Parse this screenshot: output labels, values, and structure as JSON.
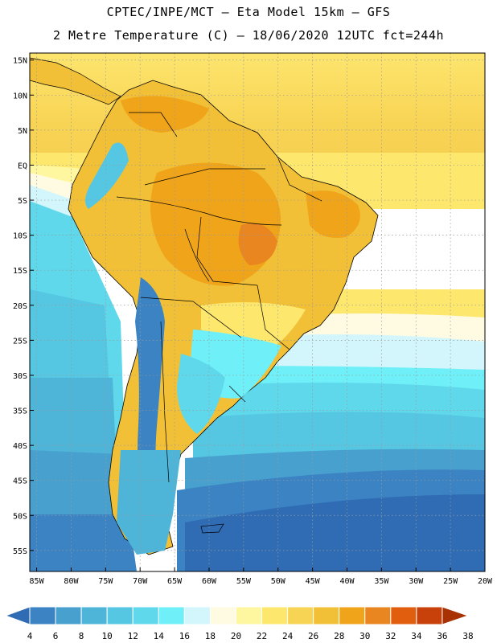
{
  "header": {
    "line1": "CPTEC/INPE/MCT –  Eta Model 15km – GFS",
    "line2": "2 Metre Temperature (C) – 18/06/2020 12UTC fct=244h"
  },
  "map": {
    "lat_labels": [
      "15N",
      "10N",
      "5N",
      "EQ",
      "5S",
      "10S",
      "15S",
      "20S",
      "25S",
      "30S",
      "35S",
      "40S",
      "45S",
      "50S",
      "55S"
    ],
    "lat_values": [
      15,
      10,
      5,
      0,
      -5,
      -10,
      -15,
      -20,
      -25,
      -30,
      -35,
      -40,
      -45,
      -50,
      -55
    ],
    "lon_labels": [
      "85W",
      "80W",
      "75W",
      "70W",
      "65W",
      "60W",
      "55W",
      "50W",
      "45W",
      "40W",
      "35W",
      "30W",
      "25W",
      "20W"
    ],
    "lon_values": [
      -85,
      -80,
      -75,
      -70,
      -65,
      -60,
      -55,
      -50,
      -45,
      -40,
      -35,
      -30,
      -25,
      -20
    ],
    "extent": {
      "lon_min": -86,
      "lon_max": -20,
      "lat_min": -58,
      "lat_max": 16
    }
  },
  "colorbar": {
    "labels": [
      "4",
      "6",
      "8",
      "10",
      "12",
      "14",
      "16",
      "18",
      "20",
      "22",
      "24",
      "26",
      "28",
      "30",
      "32",
      "34",
      "36",
      "38"
    ],
    "colors": [
      "#2f6cb3",
      "#3b83c2",
      "#48a0cf",
      "#4eb4d8",
      "#56c7e2",
      "#5fd8ec",
      "#6ff0f8",
      "#d2f6fb",
      "#fffbe3",
      "#fff7a0",
      "#fde86d",
      "#f8d454",
      "#f2c036",
      "#f0a41a",
      "#ea861f",
      "#e05e0d",
      "#c9410a",
      "#a83203"
    ]
  }
}
